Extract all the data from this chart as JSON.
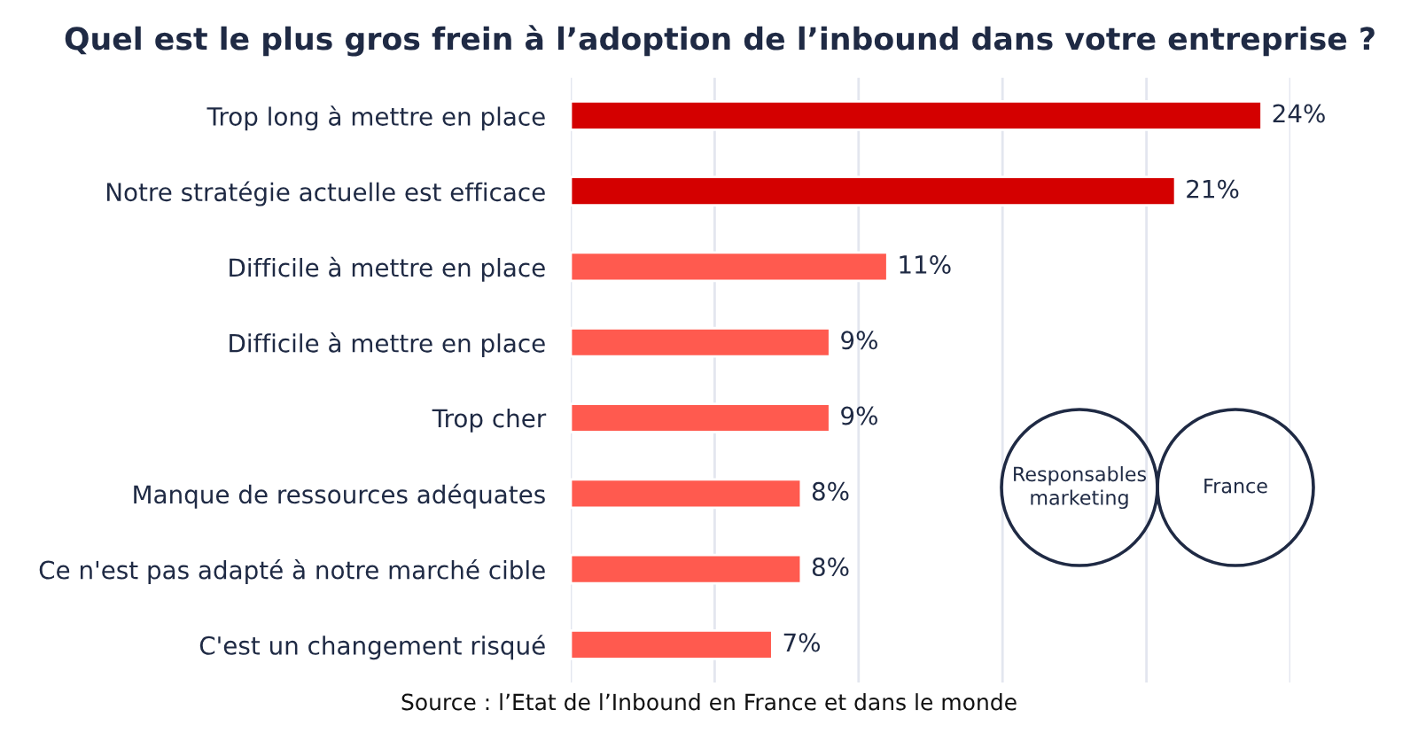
{
  "chart_data": {
    "type": "bar",
    "orientation": "horizontal",
    "title": "Quel est le plus gros frein à l’adoption de l’inbound dans votre entreprise ?",
    "categories": [
      "Trop long à mettre en place",
      "Notre stratégie actuelle est efficace",
      "Difficile à mettre en place",
      "Difficile à mettre en place",
      "Trop cher",
      "Manque de ressources adéquates",
      "Ce n'est pas adapté à notre marché cible",
      "C'est un changement risqué"
    ],
    "values": [
      24,
      21,
      11,
      9,
      9,
      8,
      8,
      7
    ],
    "colors": [
      "#d40000",
      "#d40000",
      "#ff5a4f",
      "#ff5a4f",
      "#ff5a4f",
      "#ff5a4f",
      "#ff5a4f",
      "#ff5a4f"
    ],
    "value_labels": [
      "24%",
      "21%",
      "11%",
      "9%",
      "9%",
      "8%",
      "8%",
      "7%"
    ],
    "xlim": [
      0,
      25
    ],
    "xticks": [
      {
        "value": 0,
        "label": null
      },
      {
        "value": 5,
        "label": null
      },
      {
        "value": 10,
        "label": null
      },
      {
        "value": 15,
        "label": null
      },
      {
        "value": 20,
        "label": null
      },
      {
        "value": 25,
        "label": null
      }
    ],
    "grid": "x",
    "tick_labels": "y",
    "legend": false,
    "annotations": [
      "Source : l’Etat de l’Inbound en France et dans le monde",
      "Responsables\nmarketing",
      "France"
    ]
  }
}
